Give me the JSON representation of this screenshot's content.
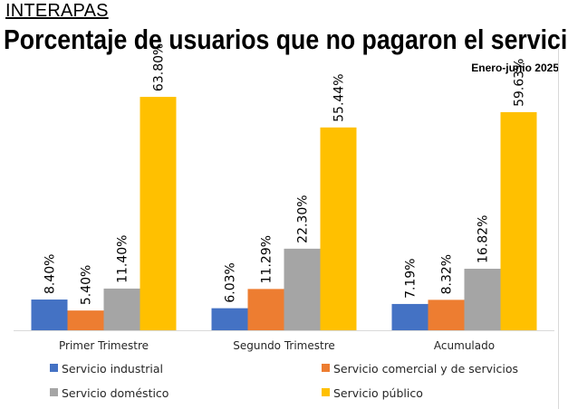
{
  "header": {
    "brand": "INTERAPAS",
    "title": "Porcentaje de usuarios que no pagaron el servicio",
    "subtitle": "Enero-junio 2025"
  },
  "chart_data": {
    "type": "bar",
    "title": "Porcentaje de usuarios que no pagaron el servicio",
    "subtitle": "Enero-junio 2025",
    "categories": [
      "Primer Trimestre",
      "Segundo Trimestre",
      "Acumulado"
    ],
    "series": [
      {
        "name": "Servicio industrial",
        "color": "#4472c4",
        "values": [
          8.4,
          6.03,
          7.19
        ],
        "labels": [
          "8.40%",
          "6.03%",
          "7.19%"
        ]
      },
      {
        "name": "Servicio comercial y de servicios",
        "color": "#ed7d31",
        "values": [
          5.4,
          11.29,
          8.32
        ],
        "labels": [
          "5.40%",
          "11.29%",
          "8.32%"
        ]
      },
      {
        "name": "Servicio doméstico",
        "color": "#a5a5a5",
        "values": [
          11.4,
          22.3,
          16.82
        ],
        "labels": [
          "11.40%",
          "22.30%",
          "16.82%"
        ]
      },
      {
        "name": "Servicio público",
        "color": "#ffc000",
        "values": [
          63.8,
          55.44,
          59.63
        ],
        "labels": [
          "63.80%",
          "55.44%",
          "59.63%"
        ]
      }
    ],
    "ylim": [
      0,
      70
    ],
    "xlabel": "",
    "ylabel": "",
    "grid": false,
    "legend_position": "bottom"
  }
}
